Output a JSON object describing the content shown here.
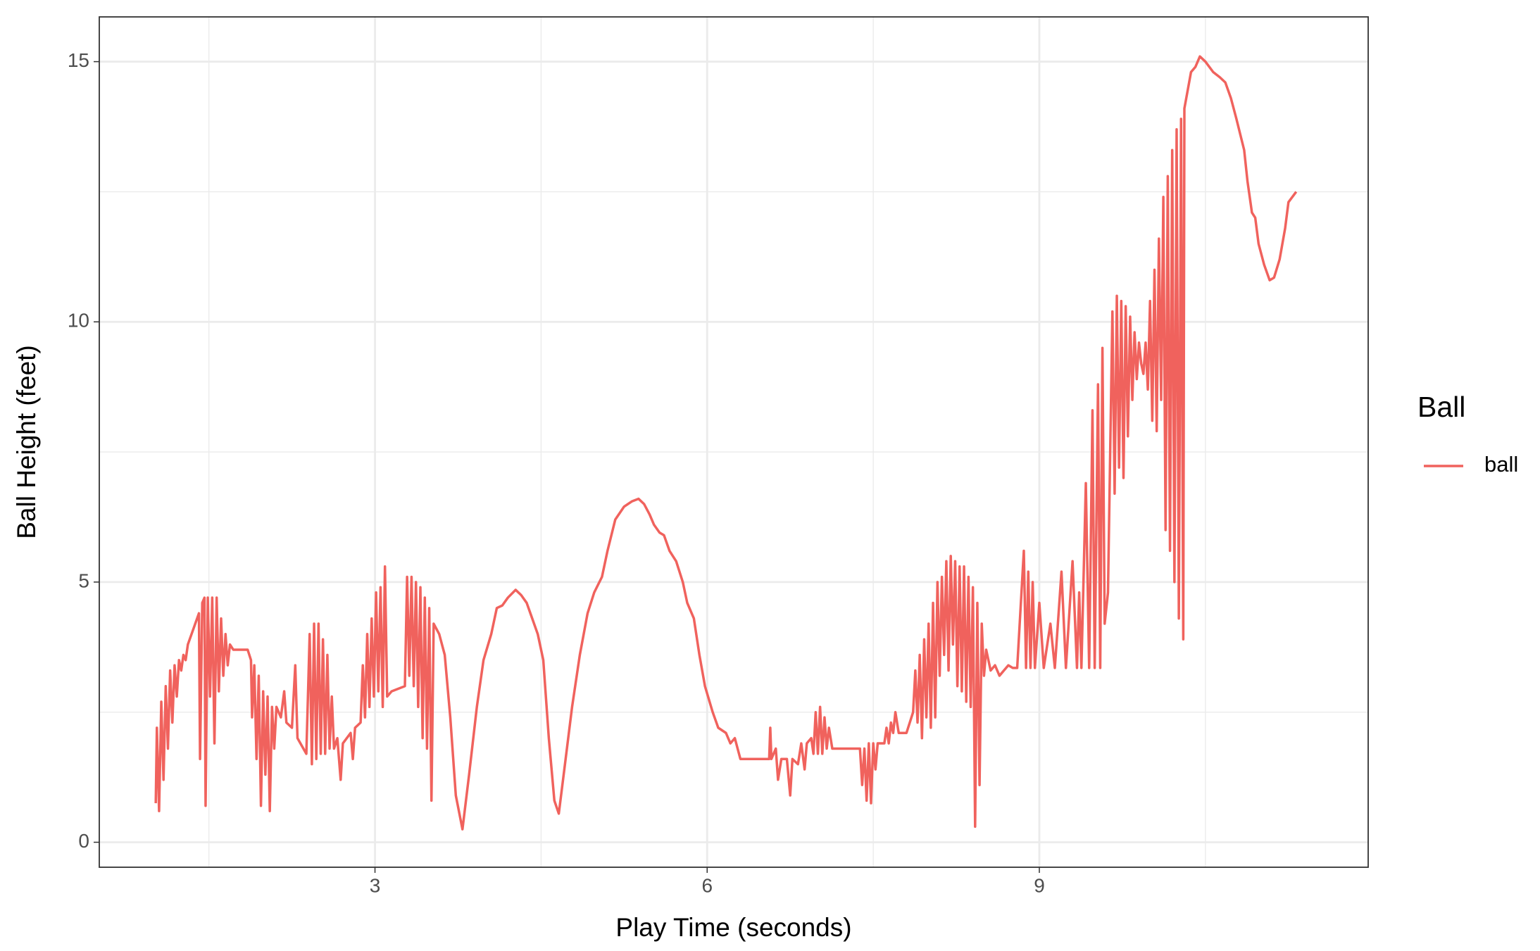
{
  "chart_data": {
    "type": "line",
    "x_label": "Play Time (seconds)",
    "y_label": "Ball Height (feet)",
    "legend_title": "Ball",
    "legend_position": "right",
    "xlim": [
      0.51,
      11.97
    ],
    "ylim": [
      -0.48,
      15.86
    ],
    "xticks": [
      3,
      6,
      9
    ],
    "yticks": [
      0,
      5,
      10,
      15
    ],
    "x_minor_grid": [
      1.5,
      4.5,
      7.5,
      10.5
    ],
    "y_minor_grid": [
      2.5,
      7.5,
      12.5
    ],
    "grid": true,
    "x": [
      1.02,
      1.03,
      1.05,
      1.07,
      1.09,
      1.11,
      1.13,
      1.15,
      1.17,
      1.19,
      1.21,
      1.23,
      1.25,
      1.27,
      1.29,
      1.31,
      1.36,
      1.41,
      1.42,
      1.44,
      1.46,
      1.47,
      1.49,
      1.51,
      1.53,
      1.55,
      1.57,
      1.59,
      1.61,
      1.63,
      1.65,
      1.67,
      1.69,
      1.72,
      1.78,
      1.85,
      1.88,
      1.89,
      1.91,
      1.93,
      1.95,
      1.97,
      1.99,
      2.01,
      2.03,
      2.05,
      2.07,
      2.09,
      2.11,
      2.15,
      2.18,
      2.2,
      2.25,
      2.28,
      2.3,
      2.38,
      2.41,
      2.43,
      2.45,
      2.47,
      2.49,
      2.51,
      2.53,
      2.55,
      2.57,
      2.59,
      2.61,
      2.63,
      2.66,
      2.69,
      2.71,
      2.78,
      2.8,
      2.82,
      2.87,
      2.89,
      2.91,
      2.93,
      2.95,
      2.97,
      2.99,
      3.01,
      3.03,
      3.05,
      3.07,
      3.09,
      3.11,
      3.15,
      3.27,
      3.29,
      3.31,
      3.33,
      3.35,
      3.37,
      3.39,
      3.41,
      3.43,
      3.45,
      3.47,
      3.49,
      3.51,
      3.53,
      3.58,
      3.63,
      3.68,
      3.73,
      3.79,
      3.85,
      3.92,
      3.98,
      4.05,
      4.1,
      4.15,
      4.2,
      4.27,
      4.32,
      4.37,
      4.42,
      4.47,
      4.52,
      4.57,
      4.62,
      4.66,
      4.71,
      4.78,
      4.85,
      4.92,
      4.98,
      5.05,
      5.1,
      5.17,
      5.25,
      5.32,
      5.38,
      5.43,
      5.48,
      5.52,
      5.57,
      5.61,
      5.66,
      5.72,
      5.78,
      5.82,
      5.86,
      5.88,
      5.93,
      5.98,
      6.05,
      6.1,
      6.17,
      6.21,
      6.25,
      6.3,
      6.48,
      6.56,
      6.57,
      6.58,
      6.62,
      6.64,
      6.67,
      6.72,
      6.75,
      6.77,
      6.82,
      6.85,
      6.88,
      6.9,
      6.94,
      6.96,
      6.98,
      7.0,
      7.02,
      7.04,
      7.06,
      7.08,
      7.1,
      7.13,
      7.38,
      7.4,
      7.42,
      7.44,
      7.46,
      7.48,
      7.5,
      7.52,
      7.54,
      7.6,
      7.62,
      7.64,
      7.66,
      7.68,
      7.7,
      7.73,
      7.8,
      7.86,
      7.88,
      7.9,
      7.92,
      7.94,
      7.96,
      7.98,
      8.0,
      8.02,
      8.04,
      8.06,
      8.08,
      8.1,
      8.12,
      8.14,
      8.16,
      8.18,
      8.2,
      8.22,
      8.24,
      8.26,
      8.28,
      8.3,
      8.32,
      8.34,
      8.36,
      8.38,
      8.4,
      8.42,
      8.44,
      8.46,
      8.48,
      8.5,
      8.52,
      8.56,
      8.6,
      8.64,
      8.68,
      8.72,
      8.76,
      8.8,
      8.86,
      8.88,
      8.9,
      8.92,
      8.94,
      8.96,
      9.0,
      9.04,
      9.1,
      9.14,
      9.2,
      9.24,
      9.3,
      9.34,
      9.36,
      9.38,
      9.42,
      9.45,
      9.48,
      9.5,
      9.53,
      9.55,
      9.57,
      9.59,
      9.62,
      9.66,
      9.68,
      9.7,
      9.72,
      9.74,
      9.76,
      9.78,
      9.8,
      9.82,
      9.84,
      9.86,
      9.88,
      9.9,
      9.92,
      9.94,
      9.96,
      9.98,
      10.0,
      10.02,
      10.04,
      10.06,
      10.08,
      10.1,
      10.12,
      10.14,
      10.16,
      10.18,
      10.2,
      10.22,
      10.24,
      10.26,
      10.28,
      10.3,
      10.31,
      10.37,
      10.41,
      10.45,
      10.5,
      10.57,
      10.63,
      10.68,
      10.73,
      10.78,
      10.85,
      10.88,
      10.92,
      10.95,
      10.98,
      11.03,
      11.08,
      11.12,
      11.17,
      11.22,
      11.25,
      11.32
    ],
    "series": [
      {
        "name": "ball",
        "color": "#F0625D",
        "values": [
          0.75,
          2.2,
          0.6,
          2.7,
          1.2,
          3.0,
          1.8,
          3.3,
          2.3,
          3.4,
          2.8,
          3.5,
          3.3,
          3.6,
          3.5,
          3.8,
          4.1,
          4.4,
          1.6,
          4.6,
          4.7,
          0.7,
          4.7,
          2.8,
          4.7,
          1.9,
          4.7,
          2.9,
          4.3,
          3.2,
          4.0,
          3.4,
          3.8,
          3.7,
          3.7,
          3.7,
          3.5,
          2.4,
          3.4,
          1.6,
          3.2,
          0.7,
          2.9,
          1.3,
          2.8,
          0.6,
          2.6,
          1.8,
          2.6,
          2.4,
          2.9,
          2.3,
          2.2,
          3.4,
          2.0,
          1.7,
          4.0,
          1.5,
          4.2,
          1.6,
          4.2,
          1.7,
          3.9,
          1.7,
          3.6,
          1.8,
          2.8,
          1.8,
          2.0,
          1.2,
          1.9,
          2.1,
          1.6,
          2.2,
          2.3,
          3.4,
          2.4,
          4.0,
          2.6,
          4.3,
          2.8,
          4.8,
          2.9,
          4.9,
          2.6,
          5.3,
          2.8,
          2.9,
          3.0,
          5.1,
          3.2,
          5.1,
          3.0,
          5.0,
          2.6,
          4.9,
          2.0,
          4.7,
          1.8,
          4.5,
          0.8,
          4.2,
          4.0,
          3.6,
          2.4,
          0.9,
          0.25,
          1.3,
          2.6,
          3.5,
          4.0,
          4.5,
          4.55,
          4.7,
          4.85,
          4.75,
          4.6,
          4.3,
          4.0,
          3.5,
          2.0,
          0.8,
          0.55,
          1.4,
          2.6,
          3.6,
          4.4,
          4.8,
          5.1,
          5.6,
          6.2,
          6.45,
          6.55,
          6.6,
          6.5,
          6.3,
          6.1,
          5.95,
          5.9,
          5.6,
          5.4,
          5.0,
          4.6,
          4.4,
          4.3,
          3.6,
          3.0,
          2.5,
          2.2,
          2.1,
          1.9,
          2.0,
          1.6,
          1.6,
          1.6,
          2.2,
          1.6,
          1.8,
          1.2,
          1.6,
          1.6,
          0.9,
          1.6,
          1.5,
          1.9,
          1.4,
          1.9,
          2.0,
          1.7,
          2.5,
          1.7,
          2.6,
          1.7,
          2.4,
          1.8,
          2.2,
          1.8,
          1.8,
          1.1,
          1.8,
          0.8,
          1.9,
          0.75,
          1.9,
          1.4,
          1.9,
          1.9,
          2.2,
          1.9,
          2.3,
          2.1,
          2.5,
          2.1,
          2.1,
          2.5,
          3.3,
          2.3,
          3.6,
          2.0,
          3.9,
          2.4,
          4.2,
          2.2,
          4.6,
          2.4,
          5.0,
          3.2,
          5.1,
          3.6,
          5.4,
          3.3,
          5.5,
          3.8,
          5.4,
          3.0,
          5.3,
          2.9,
          5.3,
          2.7,
          5.1,
          2.6,
          4.9,
          0.3,
          4.6,
          1.1,
          4.2,
          3.2,
          3.7,
          3.3,
          3.4,
          3.2,
          3.3,
          3.4,
          3.35,
          3.35,
          5.6,
          3.35,
          5.2,
          3.35,
          5.0,
          3.35,
          4.6,
          3.35,
          4.2,
          3.35,
          5.2,
          3.35,
          5.4,
          3.35,
          4.8,
          3.35,
          6.9,
          3.35,
          8.3,
          3.35,
          8.8,
          3.35,
          9.5,
          4.2,
          4.8,
          10.2,
          6.7,
          10.5,
          7.2,
          10.4,
          7.0,
          10.3,
          7.8,
          10.1,
          8.5,
          9.8,
          8.9,
          9.6,
          9.2,
          9.0,
          9.6,
          8.7,
          10.4,
          8.1,
          11.0,
          7.9,
          11.6,
          8.5,
          12.4,
          6.0,
          12.8,
          5.6,
          13.3,
          5.0,
          13.7,
          4.3,
          13.9,
          3.9,
          14.1,
          14.8,
          14.9,
          15.1,
          15.0,
          14.8,
          14.7,
          14.6,
          14.3,
          13.9,
          13.3,
          12.7,
          12.1,
          12.0,
          11.5,
          11.1,
          10.8,
          10.85,
          11.2,
          11.8,
          12.3,
          12.5
        ]
      }
    ]
  }
}
